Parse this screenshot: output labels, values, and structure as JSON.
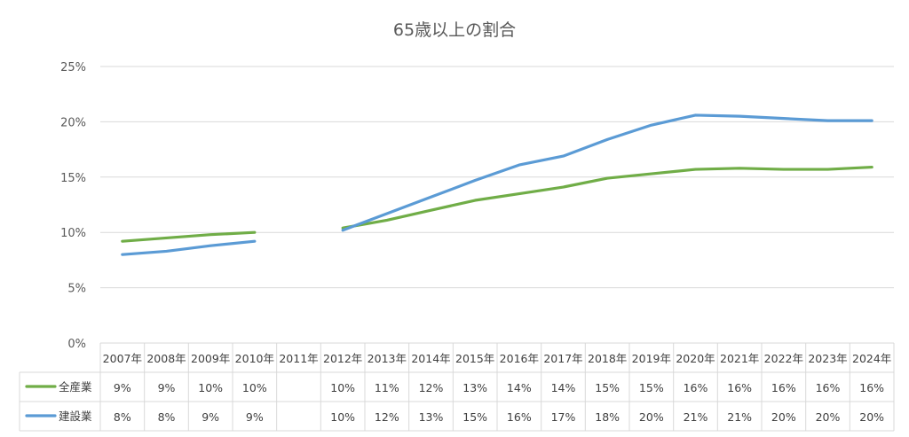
{
  "chart_data": {
    "type": "line",
    "title": "65歳以上の割合",
    "categories": [
      "2007年",
      "2008年",
      "2009年",
      "2010年",
      "2011年",
      "2012年",
      "2013年",
      "2014年",
      "2015年",
      "2016年",
      "2017年",
      "2018年",
      "2019年",
      "2020年",
      "2021年",
      "2022年",
      "2023年",
      "2024年"
    ],
    "y_ticks": [
      "0%",
      "5%",
      "10%",
      "15%",
      "20%",
      "25%"
    ],
    "ylim": [
      0,
      0.25
    ],
    "grid": true,
    "legend_placement": "data-table",
    "series": [
      {
        "name": "全産業",
        "color": "#70AD47",
        "values": [
          0.092,
          0.095,
          0.098,
          0.1,
          null,
          0.104,
          0.111,
          0.12,
          0.129,
          0.135,
          0.141,
          0.149,
          0.153,
          0.157,
          0.158,
          0.157,
          0.157,
          0.159
        ],
        "labels": [
          "9%",
          "9%",
          "10%",
          "10%",
          "",
          "10%",
          "11%",
          "12%",
          "13%",
          "14%",
          "14%",
          "15%",
          "15%",
          "16%",
          "16%",
          "16%",
          "16%",
          "16%"
        ]
      },
      {
        "name": "建設業",
        "color": "#5B9BD5",
        "values": [
          0.08,
          0.083,
          0.088,
          0.092,
          null,
          0.102,
          0.117,
          0.132,
          0.147,
          0.161,
          0.169,
          0.184,
          0.197,
          0.206,
          0.205,
          0.203,
          0.201,
          0.201
        ],
        "labels": [
          "8%",
          "8%",
          "9%",
          "9%",
          "",
          "10%",
          "12%",
          "13%",
          "15%",
          "16%",
          "17%",
          "18%",
          "20%",
          "21%",
          "21%",
          "20%",
          "20%",
          "20%"
        ]
      }
    ]
  }
}
